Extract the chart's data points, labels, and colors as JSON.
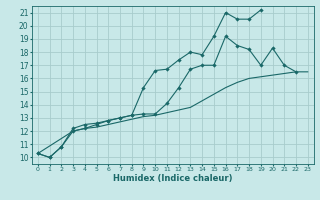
{
  "xlabel": "Humidex (Indice chaleur)",
  "background_color": "#c8e8e8",
  "grid_color": "#a8cccc",
  "line_color": "#1a6868",
  "xlim": [
    -0.5,
    23.5
  ],
  "ylim": [
    9.5,
    21.5
  ],
  "xticks": [
    0,
    1,
    2,
    3,
    4,
    5,
    6,
    7,
    8,
    9,
    10,
    11,
    12,
    13,
    14,
    15,
    16,
    17,
    18,
    19,
    20,
    21,
    22,
    23
  ],
  "yticks": [
    10,
    11,
    12,
    13,
    14,
    15,
    16,
    17,
    18,
    19,
    20,
    21
  ],
  "line1_x": [
    0,
    1,
    2,
    3,
    4,
    5,
    6,
    7,
    8,
    9,
    10,
    11,
    12,
    13,
    14,
    15,
    16,
    17,
    18,
    19
  ],
  "line1_y": [
    10.3,
    10.0,
    10.8,
    12.2,
    12.5,
    12.6,
    12.8,
    13.0,
    13.2,
    15.3,
    16.6,
    16.7,
    17.4,
    18.0,
    17.8,
    19.2,
    21.0,
    20.5,
    20.5,
    21.2
  ],
  "line2_x": [
    0,
    1,
    2,
    3,
    4,
    5,
    6,
    7,
    8,
    9,
    10,
    11,
    12,
    13,
    14,
    15,
    16,
    17,
    18,
    19,
    20,
    21,
    22
  ],
  "line2_y": [
    10.3,
    10.0,
    10.8,
    12.0,
    12.2,
    12.5,
    12.8,
    13.0,
    13.2,
    13.3,
    13.3,
    14.1,
    15.3,
    16.7,
    17.0,
    17.0,
    19.2,
    18.5,
    18.2,
    17.0,
    18.3,
    17.0,
    16.5
  ],
  "line3_x": [
    0,
    3,
    4,
    5,
    6,
    7,
    8,
    9,
    10,
    11,
    12,
    13,
    14,
    15,
    16,
    17,
    18,
    22,
    23
  ],
  "line3_y": [
    10.3,
    12.0,
    12.2,
    12.3,
    12.5,
    12.7,
    12.9,
    13.1,
    13.2,
    13.4,
    13.6,
    13.8,
    14.3,
    14.8,
    15.3,
    15.7,
    16.0,
    16.5,
    16.5
  ]
}
